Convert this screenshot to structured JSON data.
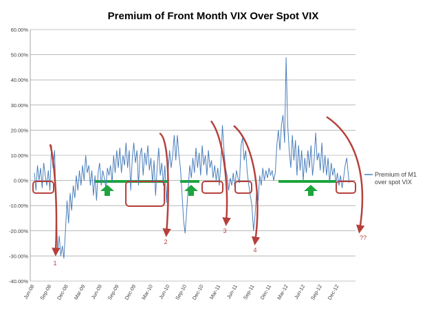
{
  "chart_data": {
    "type": "line",
    "title": "Premium of Front Month VIX Over Spot VIX",
    "xlabel": "",
    "ylabel": "",
    "ylim": [
      -0.4,
      0.6
    ],
    "y_ticks": [
      {
        "value": 0.6,
        "label": "60.00%"
      },
      {
        "value": 0.5,
        "label": "50.00%"
      },
      {
        "value": 0.4,
        "label": "40.00%"
      },
      {
        "value": 0.3,
        "label": "30.00%"
      },
      {
        "value": 0.2,
        "label": "20.00%"
      },
      {
        "value": 0.1,
        "label": "10.00%"
      },
      {
        "value": 0.0,
        "label": "0.00%"
      },
      {
        "value": -0.1,
        "label": "-10.00%"
      },
      {
        "value": -0.2,
        "label": "-20.00%"
      },
      {
        "value": -0.3,
        "label": "-30.00%"
      },
      {
        "value": -0.4,
        "label": "-40.00%"
      }
    ],
    "x_ticks": [
      "Jun-08",
      "Sep-08",
      "Dec-08",
      "Mar-09",
      "Jun-09",
      "Sep-09",
      "Dec-09",
      "Mar-10",
      "Jun-10",
      "Sep-10",
      "Dec-10",
      "Mar-11",
      "Jun-11",
      "Sep-11",
      "Dec-11",
      "Mar-12",
      "Jun-12",
      "Sep-12",
      "Dec-12"
    ],
    "legend": {
      "entries": [
        "Premium of M1 over spot VIX"
      ],
      "lines": [
        "Premium of M1",
        "over spot VIX"
      ],
      "position": "right"
    },
    "series": [
      {
        "name": "Premium of M1 over spot VIX",
        "color": "#4a7ebb",
        "points": [
          [
            0,
            0.03
          ],
          [
            0.2,
            -0.04
          ],
          [
            0.4,
            0.06
          ],
          [
            0.6,
            0.0
          ],
          [
            0.8,
            0.05
          ],
          [
            1.0,
            -0.03
          ],
          [
            1.2,
            0.07
          ],
          [
            1.4,
            0.02
          ],
          [
            1.6,
            -0.02
          ],
          [
            1.8,
            0.04
          ],
          [
            2.0,
            -0.04
          ],
          [
            2.2,
            0.14
          ],
          [
            2.4,
            0.05
          ],
          [
            2.6,
            0.12
          ],
          [
            2.8,
            -0.1
          ],
          [
            3.0,
            -0.28
          ],
          [
            3.2,
            -0.22
          ],
          [
            3.4,
            -0.3
          ],
          [
            3.6,
            -0.26
          ],
          [
            3.8,
            -0.31
          ],
          [
            4.0,
            -0.2
          ],
          [
            4.2,
            -0.08
          ],
          [
            4.4,
            -0.17
          ],
          [
            4.6,
            -0.05
          ],
          [
            4.8,
            -0.12
          ],
          [
            5.0,
            -0.02
          ],
          [
            5.2,
            -0.07
          ],
          [
            5.4,
            0.02
          ],
          [
            5.6,
            -0.04
          ],
          [
            5.8,
            0.04
          ],
          [
            6.0,
            -0.02
          ],
          [
            6.2,
            0.06
          ],
          [
            6.4,
            0.0
          ],
          [
            6.6,
            0.1
          ],
          [
            6.8,
            0.03
          ],
          [
            7.0,
            0.06
          ],
          [
            7.2,
            -0.02
          ],
          [
            7.4,
            0.04
          ],
          [
            7.6,
            -0.06
          ],
          [
            7.8,
            0.02
          ],
          [
            8.0,
            -0.08
          ],
          [
            8.2,
            0.03
          ],
          [
            8.4,
            0.07
          ],
          [
            8.6,
            -0.02
          ],
          [
            8.8,
            0.04
          ],
          [
            9.0,
            0.01
          ],
          [
            9.2,
            -0.03
          ],
          [
            9.4,
            0.05
          ],
          [
            9.6,
            0.02
          ],
          [
            9.8,
            0.06
          ],
          [
            10.0,
            -0.01
          ],
          [
            10.2,
            0.1
          ],
          [
            10.4,
            0.03
          ],
          [
            10.6,
            0.12
          ],
          [
            10.8,
            0.05
          ],
          [
            11.0,
            0.13
          ],
          [
            11.2,
            0.03
          ],
          [
            11.4,
            0.1
          ],
          [
            11.6,
            0.06
          ],
          [
            11.8,
            0.15
          ],
          [
            12.0,
            0.05
          ],
          [
            12.2,
            0.12
          ],
          [
            12.4,
            -0.04
          ],
          [
            12.6,
            0.09
          ],
          [
            12.8,
            0.15
          ],
          [
            13.0,
            0.07
          ],
          [
            13.2,
            0.12
          ],
          [
            13.4,
            -0.02
          ],
          [
            13.6,
            0.1
          ],
          [
            13.8,
            0.13
          ],
          [
            14.0,
            0.02
          ],
          [
            14.2,
            0.11
          ],
          [
            14.4,
            0.06
          ],
          [
            14.6,
            0.14
          ],
          [
            14.8,
            0.04
          ],
          [
            15.0,
            0.09
          ],
          [
            15.2,
            -0.01
          ],
          [
            15.4,
            0.08
          ],
          [
            15.6,
            -0.06
          ],
          [
            15.8,
            0.05
          ],
          [
            16.0,
            0.13
          ],
          [
            16.2,
            0.02
          ],
          [
            16.4,
            0.07
          ],
          [
            16.6,
            -0.02
          ],
          [
            16.8,
            0.06
          ],
          [
            17.0,
            -0.09
          ],
          [
            17.2,
            0.03
          ],
          [
            17.4,
            0.12
          ],
          [
            17.6,
            0.05
          ],
          [
            17.8,
            0.1
          ],
          [
            18.0,
            0.18
          ],
          [
            18.2,
            0.08
          ],
          [
            18.4,
            0.18
          ],
          [
            18.6,
            0.1
          ],
          [
            18.8,
            0.05
          ],
          [
            19.0,
            -0.05
          ],
          [
            19.2,
            -0.16
          ],
          [
            19.4,
            -0.21
          ],
          [
            19.6,
            -0.12
          ],
          [
            19.8,
            -0.03
          ],
          [
            20.0,
            0.06
          ],
          [
            20.2,
            0.01
          ],
          [
            20.4,
            0.09
          ],
          [
            20.6,
            0.03
          ],
          [
            20.8,
            0.13
          ],
          [
            21.0,
            0.05
          ],
          [
            21.2,
            0.11
          ],
          [
            21.4,
            0.02
          ],
          [
            21.6,
            0.14
          ],
          [
            21.8,
            0.06
          ],
          [
            22.0,
            0.1
          ],
          [
            22.2,
            0.02
          ],
          [
            22.4,
            0.12
          ],
          [
            22.6,
            0.05
          ],
          [
            22.8,
            0.08
          ],
          [
            23.0,
            0.01
          ],
          [
            23.2,
            0.06
          ],
          [
            23.4,
            0.0
          ],
          [
            23.6,
            0.05
          ],
          [
            23.8,
            -0.02
          ],
          [
            24.0,
            0.07
          ],
          [
            24.2,
            0.22
          ],
          [
            24.4,
            0.12
          ],
          [
            24.6,
            0.05
          ],
          [
            24.8,
            0.02
          ],
          [
            25.0,
            -0.04
          ],
          [
            25.2,
            0.01
          ],
          [
            25.4,
            -0.02
          ],
          [
            25.6,
            0.03
          ],
          [
            25.8,
            -0.03
          ],
          [
            26.0,
            0.04
          ],
          [
            26.2,
            0.01
          ],
          [
            26.4,
            -0.01
          ],
          [
            26.6,
            0.14
          ],
          [
            26.8,
            0.17
          ],
          [
            27.0,
            0.08
          ],
          [
            27.2,
            0.12
          ],
          [
            27.4,
            0.03
          ],
          [
            27.6,
            -0.02
          ],
          [
            27.8,
            -0.06
          ],
          [
            28.0,
            -0.1
          ],
          [
            28.2,
            -0.2
          ],
          [
            28.4,
            -0.14
          ],
          [
            28.6,
            -0.04
          ],
          [
            28.8,
            -0.08
          ],
          [
            29.0,
            0.02
          ],
          [
            29.2,
            -0.02
          ],
          [
            29.4,
            0.05
          ],
          [
            29.6,
            0.0
          ],
          [
            29.8,
            0.04
          ],
          [
            30.0,
            0.01
          ],
          [
            30.2,
            0.05
          ],
          [
            30.4,
            0.02
          ],
          [
            30.6,
            0.04
          ],
          [
            30.8,
            0.0
          ],
          [
            31.0,
            0.03
          ],
          [
            31.2,
            0.14
          ],
          [
            31.4,
            0.2
          ],
          [
            31.6,
            0.12
          ],
          [
            31.8,
            0.22
          ],
          [
            32.0,
            0.26
          ],
          [
            32.2,
            0.15
          ],
          [
            32.4,
            0.49
          ],
          [
            32.6,
            0.22
          ],
          [
            32.8,
            0.12
          ],
          [
            33.0,
            0.05
          ],
          [
            33.2,
            0.18
          ],
          [
            33.4,
            0.08
          ],
          [
            33.6,
            0.16
          ],
          [
            33.8,
            0.02
          ],
          [
            34.0,
            0.14
          ],
          [
            34.2,
            0.04
          ],
          [
            34.4,
            0.12
          ],
          [
            34.6,
            0.0
          ],
          [
            34.8,
            0.09
          ],
          [
            35.0,
            0.03
          ],
          [
            35.2,
            0.12
          ],
          [
            35.4,
            0.05
          ],
          [
            35.6,
            0.14
          ],
          [
            35.8,
            0.02
          ],
          [
            36.0,
            0.08
          ],
          [
            36.2,
            0.19
          ],
          [
            36.4,
            0.08
          ],
          [
            36.6,
            0.11
          ],
          [
            36.8,
            0.04
          ],
          [
            37.0,
            0.15
          ],
          [
            37.2,
            0.03
          ],
          [
            37.4,
            0.1
          ],
          [
            37.6,
            0.02
          ],
          [
            37.8,
            0.09
          ],
          [
            38.0,
            -0.01
          ],
          [
            38.2,
            0.07
          ],
          [
            38.4,
            0.02
          ],
          [
            38.6,
            0.05
          ],
          [
            38.8,
            -0.01
          ],
          [
            39.0,
            0.03
          ],
          [
            39.2,
            -0.02
          ],
          [
            39.4,
            0.02
          ],
          [
            39.6,
            -0.03
          ],
          [
            39.8,
            0.01
          ],
          [
            40.0,
            0.06
          ],
          [
            40.2,
            0.09
          ],
          [
            40.5,
            -0.01
          ]
        ]
      }
    ],
    "annotations": {
      "markers": [
        "1",
        "2",
        "3",
        "4",
        "??"
      ],
      "description": "Red curved arrows mark premium collapses; green bars and up-arrows mark sustained positive premium periods; red rounded boxes mark dips"
    }
  },
  "colors": {
    "series_line": "#4a7ebb",
    "annotation_red": "#b5403b",
    "annotation_green": "#1ca53c",
    "gridline": "#8c8c8c",
    "axis_text": "#404040"
  }
}
